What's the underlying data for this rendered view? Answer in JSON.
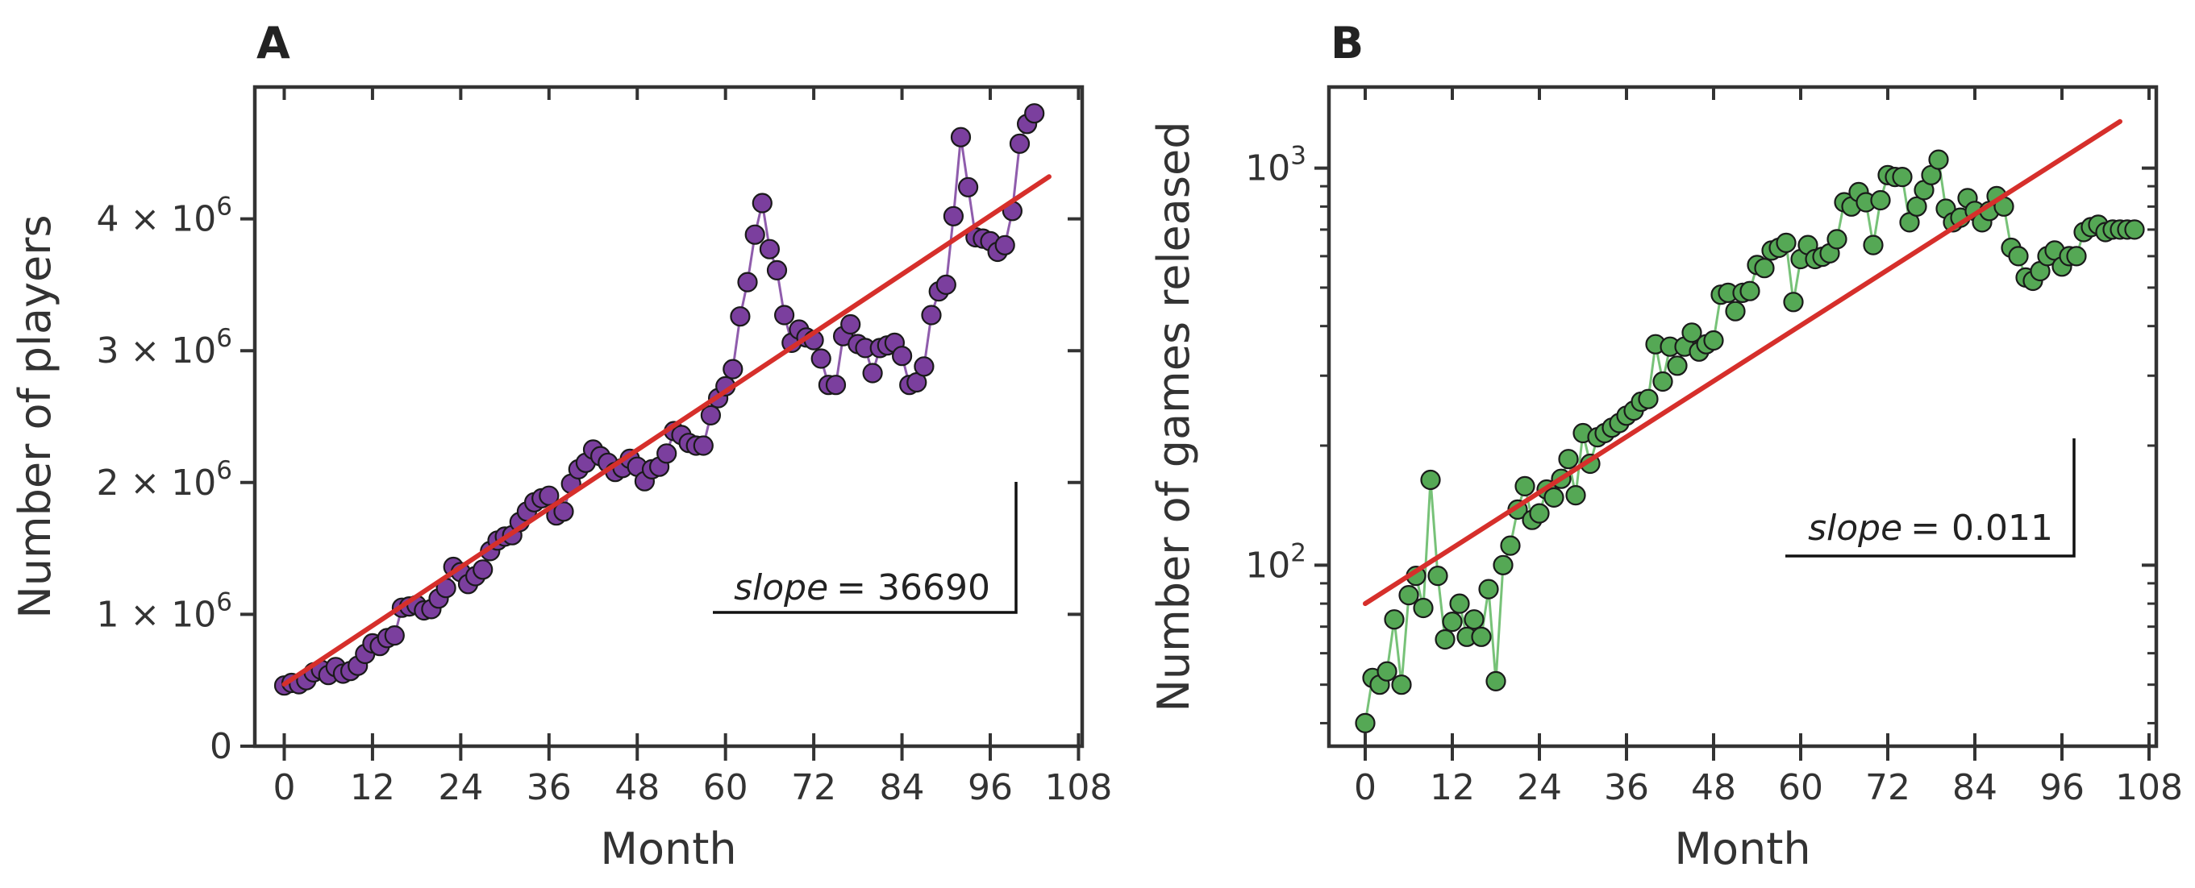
{
  "chart_data": [
    {
      "id": "A",
      "type": "line",
      "panel_label": "A",
      "xlabel": "Month",
      "ylabel": "Number of players",
      "xlim": [
        -4,
        108.5
      ],
      "ylim": [
        0,
        5000000
      ],
      "xticks": [
        0,
        12,
        24,
        36,
        48,
        60,
        72,
        84,
        96,
        108
      ],
      "xtick_labels": [
        "0",
        "12",
        "24",
        "36",
        "48",
        "60",
        "72",
        "84",
        "96",
        "108"
      ],
      "yticks": [
        0,
        1000000,
        2000000,
        3000000,
        4000000
      ],
      "ytick_labels": [
        {
          "mant": "0",
          "exp": ""
        },
        {
          "mant": "1 × 10",
          "exp": "6"
        },
        {
          "mant": "2 × 10",
          "exp": "6"
        },
        {
          "mant": "3 × 10",
          "exp": "6"
        },
        {
          "mant": "4 × 10",
          "exp": "6"
        }
      ],
      "series_color": "#7b3f9e",
      "marker_color": "#7b3f9e",
      "fit_color": "#d62f2b",
      "series": [
        {
          "name": "players",
          "x": [
            0,
            1,
            2,
            3,
            4,
            5,
            6,
            7,
            8,
            9,
            10,
            11,
            12,
            13,
            14,
            15,
            16,
            17,
            18,
            19,
            20,
            21,
            22,
            23,
            24,
            25,
            26,
            27,
            28,
            29,
            30,
            31,
            32,
            33,
            34,
            35,
            36,
            37,
            38,
            39,
            40,
            41,
            42,
            43,
            44,
            45,
            46,
            47,
            48,
            49,
            50,
            51,
            52,
            53,
            54,
            55,
            56,
            57,
            58,
            59,
            60,
            61,
            62,
            63,
            64,
            65,
            66,
            67,
            68,
            69,
            70,
            71,
            72,
            73,
            74,
            75,
            76,
            77,
            78,
            79,
            80,
            81,
            82,
            83,
            84,
            85,
            86,
            87,
            88,
            89,
            90,
            91,
            92,
            93,
            94,
            95,
            96,
            97,
            98,
            99,
            100,
            101,
            102
          ],
          "values": [
            460000,
            480000,
            470000,
            500000,
            560000,
            580000,
            540000,
            600000,
            550000,
            570000,
            610000,
            700000,
            780000,
            760000,
            820000,
            840000,
            1050000,
            1060000,
            1070000,
            1030000,
            1040000,
            1120000,
            1200000,
            1360000,
            1320000,
            1230000,
            1290000,
            1340000,
            1480000,
            1560000,
            1590000,
            1600000,
            1700000,
            1780000,
            1850000,
            1880000,
            1900000,
            1750000,
            1780000,
            1990000,
            2100000,
            2150000,
            2250000,
            2200000,
            2150000,
            2080000,
            2110000,
            2180000,
            2120000,
            2010000,
            2100000,
            2120000,
            2220000,
            2390000,
            2360000,
            2300000,
            2280000,
            2280000,
            2510000,
            2640000,
            2730000,
            2860000,
            3260000,
            3520000,
            3880000,
            4120000,
            3770000,
            3610000,
            3270000,
            3060000,
            3160000,
            3100000,
            3080000,
            2940000,
            2740000,
            2740000,
            3110000,
            3200000,
            3050000,
            3020000,
            2830000,
            3020000,
            3040000,
            3060000,
            2960000,
            2740000,
            2760000,
            2880000,
            3270000,
            3450000,
            3500000,
            4020000,
            4620000,
            4240000,
            3860000,
            3850000,
            3830000,
            3750000,
            3800000,
            4060000,
            4570000,
            4720000,
            4800000
          ]
        }
      ],
      "fit": {
        "x0": 0,
        "y0": 470000,
        "x1": 104,
        "y1": 4320000
      },
      "annotation": {
        "text_prefix": "slope",
        "text_value": "= 36690",
        "slope": 36690
      },
      "legend": "none",
      "grid": false
    },
    {
      "id": "B",
      "type": "line",
      "panel_label": "B",
      "xlabel": "Month",
      "ylabel": "Number of games released",
      "yscale": "log",
      "xlim": [
        -5,
        109
      ],
      "ylim": [
        35,
        1600
      ],
      "xticks": [
        0,
        12,
        24,
        36,
        48,
        60,
        72,
        84,
        96,
        108
      ],
      "xtick_labels": [
        "0",
        "12",
        "24",
        "36",
        "48",
        "60",
        "72",
        "84",
        "96",
        "108"
      ],
      "yticks": [
        100,
        1000
      ],
      "ytick_labels": [
        {
          "mant": "10",
          "exp": "2"
        },
        {
          "mant": "10",
          "exp": "3"
        }
      ],
      "series_color": "#5fb760",
      "marker_color": "#55a855",
      "fit_color": "#d62f2b",
      "series": [
        {
          "name": "games",
          "x": [
            0,
            1,
            2,
            3,
            4,
            5,
            6,
            7,
            8,
            9,
            10,
            11,
            12,
            13,
            14,
            15,
            16,
            17,
            18,
            19,
            20,
            21,
            22,
            23,
            24,
            25,
            26,
            27,
            28,
            29,
            30,
            31,
            32,
            33,
            34,
            35,
            36,
            37,
            38,
            39,
            40,
            41,
            42,
            43,
            44,
            45,
            46,
            47,
            48,
            49,
            50,
            51,
            52,
            53,
            54,
            55,
            56,
            57,
            58,
            59,
            60,
            61,
            62,
            63,
            64,
            65,
            66,
            67,
            68,
            69,
            70,
            71,
            72,
            73,
            74,
            75,
            76,
            77,
            78,
            79,
            80,
            81,
            82,
            83,
            84,
            85,
            86,
            87,
            88,
            89,
            90,
            91,
            92,
            93,
            94,
            95,
            96,
            97,
            98,
            99,
            100,
            101,
            102,
            103,
            104,
            105,
            106
          ],
          "values": [
            40,
            52,
            50,
            54,
            73,
            50,
            84,
            94,
            78,
            164,
            94,
            65,
            72,
            80,
            66,
            73,
            66,
            87,
            51,
            100,
            112,
            138,
            158,
            130,
            135,
            155,
            148,
            165,
            185,
            150,
            215,
            180,
            210,
            215,
            222,
            228,
            238,
            245,
            258,
            262,
            360,
            290,
            355,
            318,
            355,
            385,
            345,
            360,
            368,
            480,
            485,
            436,
            485,
            490,
            570,
            560,
            620,
            630,
            648,
            460,
            590,
            640,
            590,
            598,
            610,
            662,
            820,
            800,
            870,
            820,
            640,
            830,
            960,
            950,
            950,
            730,
            800,
            880,
            960,
            1050,
            790,
            730,
            750,
            840,
            780,
            730,
            780,
            850,
            800,
            630,
            600,
            530,
            520,
            550,
            600,
            620,
            565,
            600,
            600,
            690,
            710,
            720,
            690,
            700,
            700,
            700,
            700
          ]
        }
      ],
      "fit": {
        "x0": 0,
        "y0": 80,
        "x1": 104,
        "y1": 1310
      },
      "annotation": {
        "text_prefix": "slope",
        "text_value": "= 0.011",
        "slope": 0.011
      },
      "legend": "none",
      "grid": false
    }
  ]
}
